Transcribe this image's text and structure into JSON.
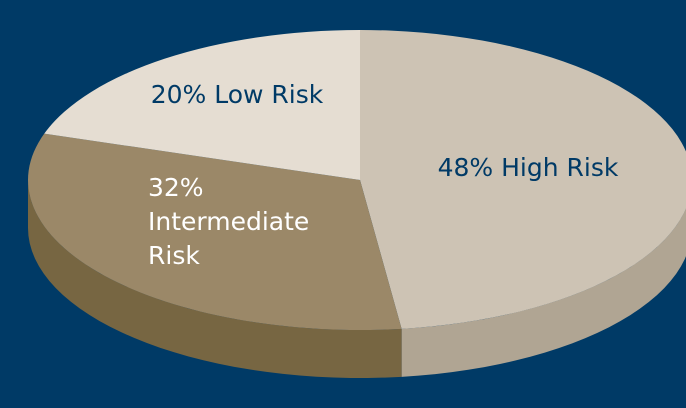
{
  "chart_data": {
    "type": "pie",
    "title": "",
    "slices": [
      {
        "label": "High Risk",
        "value": 48,
        "display": "48% High Risk",
        "lines": [
          "48% High Risk"
        ],
        "top_color": "#cdc3b4",
        "side_color": "#b0a593",
        "text_color": "#003a66"
      },
      {
        "label": "Intermediate Risk",
        "value": 32,
        "display": "32% Intermediate Risk",
        "lines": [
          "32%",
          "Intermediate",
          "Risk"
        ],
        "top_color": "#9b8868",
        "side_color": "#776642",
        "text_color": "#ffffff"
      },
      {
        "label": "Low Risk",
        "value": 20,
        "display": "20% Low Risk",
        "lines": [
          "20% Low Risk"
        ],
        "top_color": "#e5ddd2",
        "side_color": "#c8bfb1",
        "text_color": "#003a66"
      }
    ],
    "background_color": "#003a66",
    "legend": "none"
  }
}
